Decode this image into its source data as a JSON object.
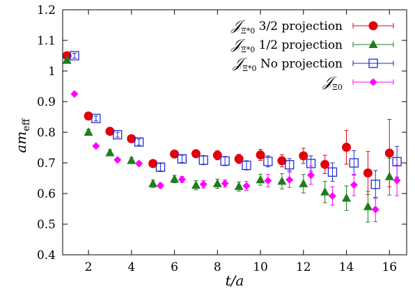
{
  "chart_data": {
    "type": "scatter",
    "xlabel": "t/a",
    "ylabel": "am_eff",
    "xlim": [
      0.8,
      16.8
    ],
    "ylim": [
      0.4,
      1.2
    ],
    "xticks": [
      "2",
      "4",
      "6",
      "8",
      "10",
      "12",
      "14",
      "16"
    ],
    "yticks": [
      "0.4",
      "0.5",
      "0.6",
      "0.7",
      "0.8",
      "0.9",
      "1",
      "1.1",
      "1.2"
    ],
    "grid": false,
    "legend_position": "top-right",
    "series": [
      {
        "name": "𝒥Ξ*0 3/2 projection",
        "name_parts": [
          "𝒥",
          "Ξ*0",
          " 3/2 projection"
        ],
        "color": "#e3000b",
        "marker": "circle",
        "x": [
          1,
          2,
          3,
          4,
          5,
          6,
          7,
          8,
          9,
          10,
          11,
          12,
          13,
          14,
          15,
          16
        ],
        "y": [
          1.05,
          0.853,
          0.803,
          0.779,
          0.698,
          0.729,
          0.73,
          0.725,
          0.713,
          0.726,
          0.707,
          0.723,
          0.695,
          0.751,
          0.667,
          0.732
        ],
        "err": [
          0.008,
          0.008,
          0.008,
          0.009,
          0.01,
          0.012,
          0.012,
          0.015,
          0.015,
          0.018,
          0.02,
          0.025,
          0.03,
          0.055,
          0.07,
          0.11
        ]
      },
      {
        "name": "𝒥Ξ*0 1/2 projection",
        "name_parts": [
          "𝒥",
          "Ξ*0",
          " 1/2 projection"
        ],
        "color": "#1e7d1e",
        "marker": "triangle",
        "x": [
          1,
          2,
          3,
          4,
          5,
          6,
          7,
          8,
          9,
          10,
          11,
          12,
          13,
          14,
          15,
          16
        ],
        "y": [
          1.035,
          0.8,
          0.733,
          0.708,
          0.632,
          0.647,
          0.627,
          0.632,
          0.623,
          0.645,
          0.64,
          0.632,
          0.605,
          0.585,
          0.557,
          0.655
        ],
        "err": [
          0.008,
          0.01,
          0.01,
          0.01,
          0.012,
          0.012,
          0.015,
          0.015,
          0.015,
          0.018,
          0.025,
          0.03,
          0.035,
          0.04,
          0.05,
          0.06
        ]
      },
      {
        "name": "𝒥Ξ*0 No projection",
        "name_parts": [
          "𝒥",
          "Ξ*0",
          " No projection"
        ],
        "color": "#1a2ad4",
        "marker": "square",
        "x": [
          1.35,
          2.35,
          3.35,
          4.35,
          5.35,
          6.35,
          7.35,
          8.35,
          9.35,
          10.35,
          11.35,
          12.35,
          13.35,
          14.35,
          15.35,
          16.35
        ],
        "y": [
          1.05,
          0.845,
          0.792,
          0.768,
          0.686,
          0.713,
          0.709,
          0.706,
          0.692,
          0.705,
          0.694,
          0.698,
          0.67,
          0.7,
          0.63,
          0.704
        ],
        "err": [
          0.008,
          0.008,
          0.008,
          0.01,
          0.012,
          0.012,
          0.015,
          0.015,
          0.015,
          0.018,
          0.02,
          0.025,
          0.03,
          0.04,
          0.045,
          0.05
        ]
      },
      {
        "name": "𝒥Ξ0",
        "name_parts": [
          "𝒥",
          "Ξ0",
          ""
        ],
        "color": "#ff00ff",
        "marker": "diamond",
        "x": [
          1.35,
          2.35,
          3.35,
          4.35,
          5.35,
          6.35,
          7.35,
          8.35,
          9.35,
          10.35,
          11.35,
          12.35,
          13.35,
          14.35,
          15.35,
          16.35
        ],
        "y": [
          0.925,
          0.755,
          0.71,
          0.698,
          0.626,
          0.646,
          0.63,
          0.633,
          0.625,
          0.642,
          0.645,
          0.66,
          0.592,
          0.628,
          0.548,
          0.643
        ],
        "err": [
          0.006,
          0.006,
          0.006,
          0.007,
          0.008,
          0.01,
          0.012,
          0.012,
          0.015,
          0.02,
          0.025,
          0.03,
          0.03,
          0.035,
          0.04,
          0.05
        ]
      }
    ]
  }
}
